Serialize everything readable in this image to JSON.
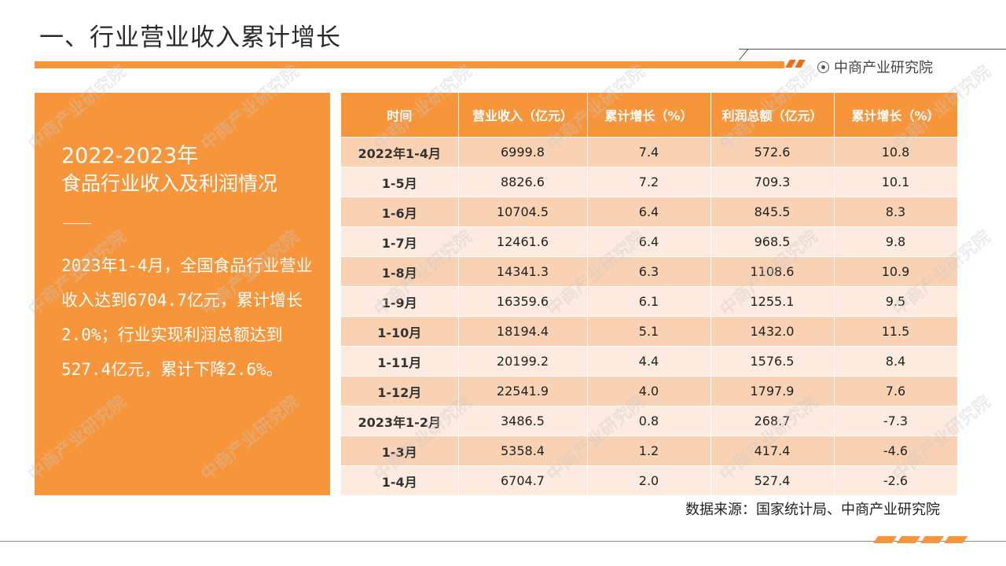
{
  "page": {
    "title": "一、行业营业收入累计增长",
    "brand": "中商产业研究院",
    "source": "数据来源：国家统计局、中商产业研究院",
    "watermark": "中商产业研究院"
  },
  "panel": {
    "year": "2022-2023年",
    "subtitle": "食品行业收入及利润情况",
    "text": "2023年1-4月，全国食品行业营业收入达到6704.7亿元，累计增长2.0%；行业实现利润总额达到527.4亿元，累计下降2.6%。"
  },
  "table": {
    "headers": [
      "时间",
      "营业收入（亿元）",
      "累计增长（%）",
      "利润总额（亿元）",
      "累计增长（%）"
    ],
    "rows": [
      [
        "2022年1-4月",
        "6999.8",
        "7.4",
        "572.6",
        "10.8"
      ],
      [
        "1-5月",
        "8826.6",
        "7.2",
        "709.3",
        "10.1"
      ],
      [
        "1-6月",
        "10704.5",
        "6.4",
        "845.5",
        "8.3"
      ],
      [
        "1-7月",
        "12461.6",
        "6.4",
        "968.5",
        "9.8"
      ],
      [
        "1-8月",
        "14341.3",
        "6.3",
        "1108.6",
        "10.9"
      ],
      [
        "1-9月",
        "16359.6",
        "6.1",
        "1255.1",
        "9.5"
      ],
      [
        "1-10月",
        "18194.4",
        "5.1",
        "1432.0",
        "11.5"
      ],
      [
        "1-11月",
        "20199.2",
        "4.4",
        "1576.5",
        "8.4"
      ],
      [
        "1-12月",
        "22541.9",
        "4.0",
        "1797.9",
        "7.6"
      ],
      [
        "2023年1-2月",
        "3486.5",
        "0.8",
        "268.7",
        "-7.3"
      ],
      [
        "1-3月",
        "5358.4",
        "1.2",
        "417.4",
        "-4.6"
      ],
      [
        "1-4月",
        "6704.7",
        "2.0",
        "527.4",
        "-2.6"
      ]
    ]
  },
  "colors": {
    "accent": "#f7953b",
    "row_dark": "#f9d2b4",
    "row_light": "#fdebdf"
  }
}
